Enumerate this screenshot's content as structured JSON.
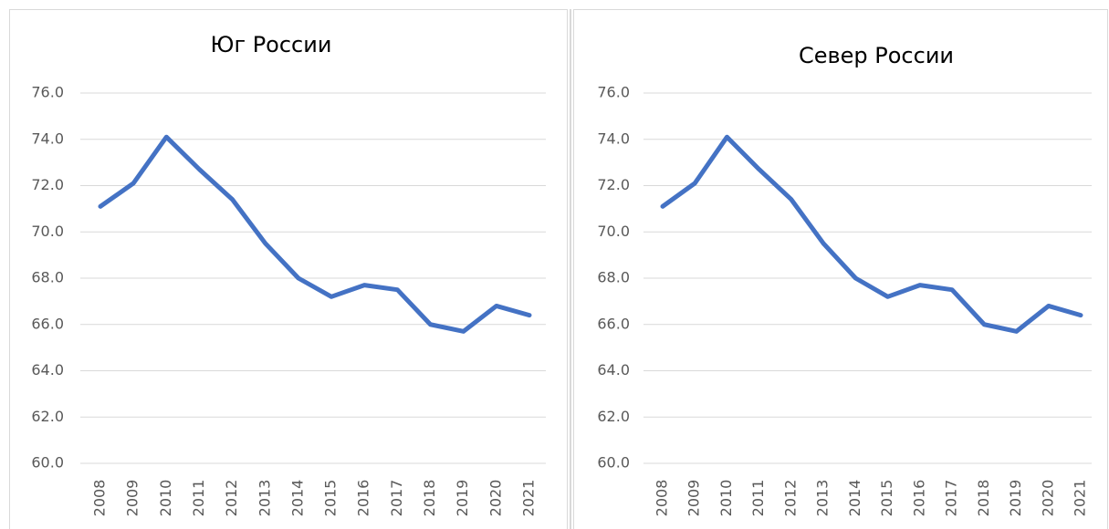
{
  "chart_data": [
    {
      "type": "line",
      "title": "Юг России",
      "categories": [
        "2008",
        "2009",
        "2010",
        "2011",
        "2012",
        "2013",
        "2014",
        "2015",
        "2016",
        "2017",
        "2018",
        "2019",
        "2020",
        "2021"
      ],
      "series": [
        {
          "color": "#4472c4",
          "values": [
            71.1,
            72.1,
            74.1,
            72.7,
            71.4,
            69.5,
            68.0,
            67.2,
            67.7,
            67.5,
            66.0,
            65.7,
            66.8,
            66.4
          ]
        }
      ],
      "ylim": [
        60,
        76
      ],
      "yticks": [
        {
          "value": 60,
          "label": "60.0"
        },
        {
          "value": 62,
          "label": "62.0"
        },
        {
          "value": 64,
          "label": "64.0"
        },
        {
          "value": 66,
          "label": "66.0"
        },
        {
          "value": 68,
          "label": "68.0"
        },
        {
          "value": 70,
          "label": "70.0"
        },
        {
          "value": 72,
          "label": "72.0"
        },
        {
          "value": 74,
          "label": "74.0"
        },
        {
          "value": 76,
          "label": "76.0"
        }
      ],
      "grid": true
    },
    {
      "type": "line",
      "title": "Север России",
      "categories": [
        "2008",
        "2009",
        "2010",
        "2011",
        "2012",
        "2013",
        "2014",
        "2015",
        "2016",
        "2017",
        "2018",
        "2019",
        "2020",
        "2021"
      ],
      "series": [
        {
          "color": "#4472c4",
          "values": [
            71.1,
            72.1,
            74.1,
            72.7,
            71.4,
            69.5,
            68.0,
            67.2,
            67.7,
            67.5,
            66.0,
            65.7,
            66.8,
            66.4
          ]
        }
      ],
      "ylim": [
        60,
        76
      ],
      "yticks": [
        {
          "value": 60,
          "label": "60.0"
        },
        {
          "value": 62,
          "label": "62.0"
        },
        {
          "value": 64,
          "label": "64.0"
        },
        {
          "value": 66,
          "label": "66.0"
        },
        {
          "value": 68,
          "label": "68.0"
        },
        {
          "value": 70,
          "label": "70.0"
        },
        {
          "value": 72,
          "label": "72.0"
        },
        {
          "value": 74,
          "label": "74.0"
        },
        {
          "value": 76,
          "label": "76.0"
        }
      ],
      "grid": true
    }
  ]
}
